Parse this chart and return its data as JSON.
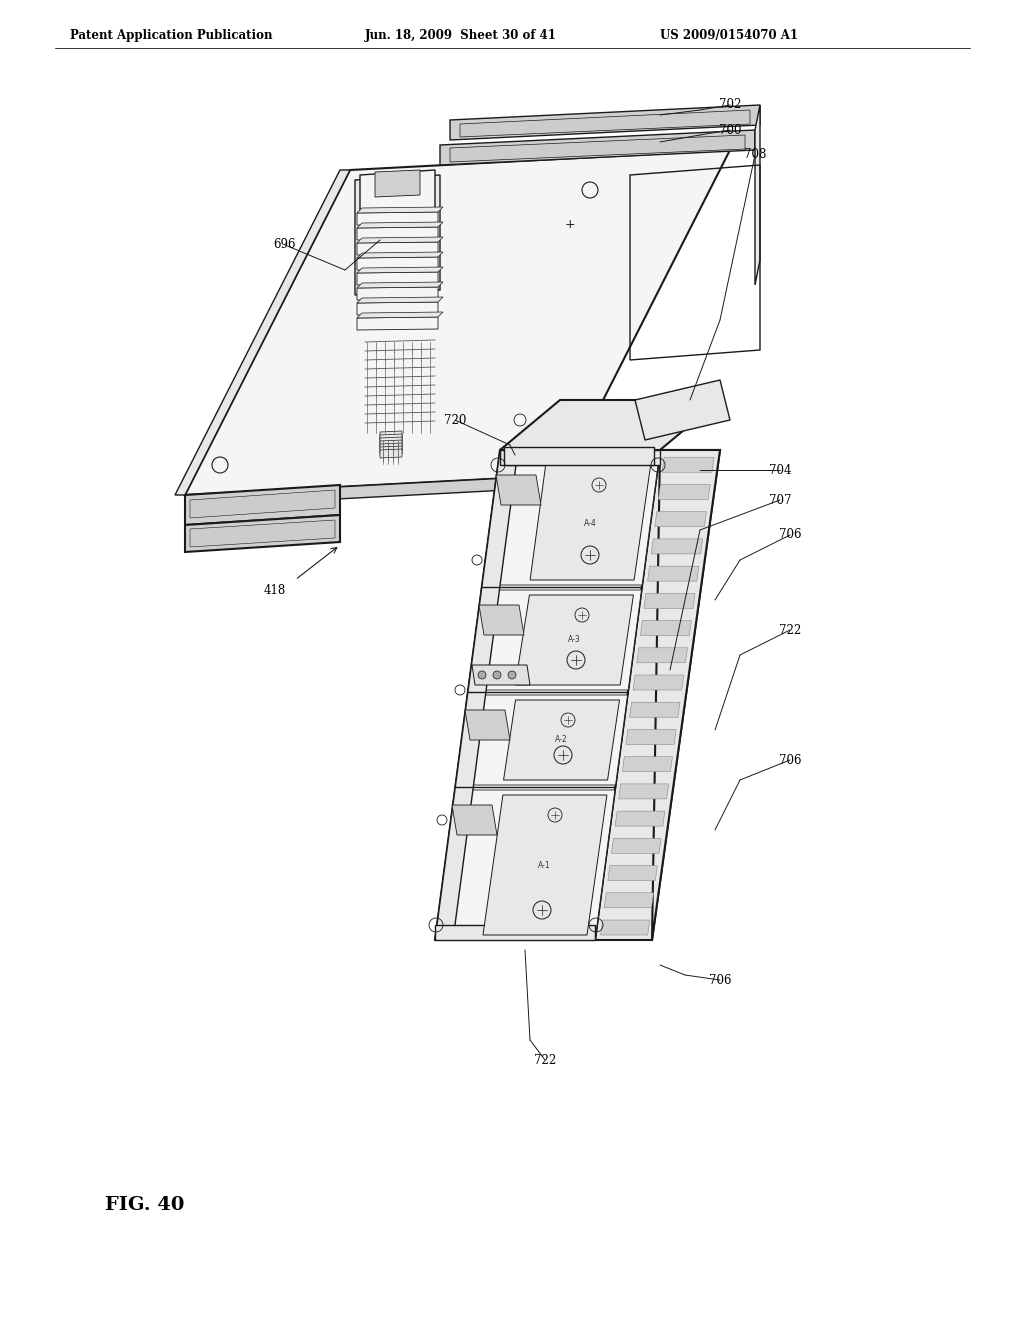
{
  "background_color": "#ffffff",
  "header_left": "Patent Application Publication",
  "header_mid": "Jun. 18, 2009  Sheet 30 of 41",
  "header_right": "US 2009/0154070 A1",
  "fig_label": "FIG. 40",
  "line_color": "#1a1a1a",
  "fill_light": "#f5f5f5",
  "fill_mid": "#e8e8e8",
  "fill_dark": "#d0d0d0",
  "fill_darker": "#b8b8b8"
}
